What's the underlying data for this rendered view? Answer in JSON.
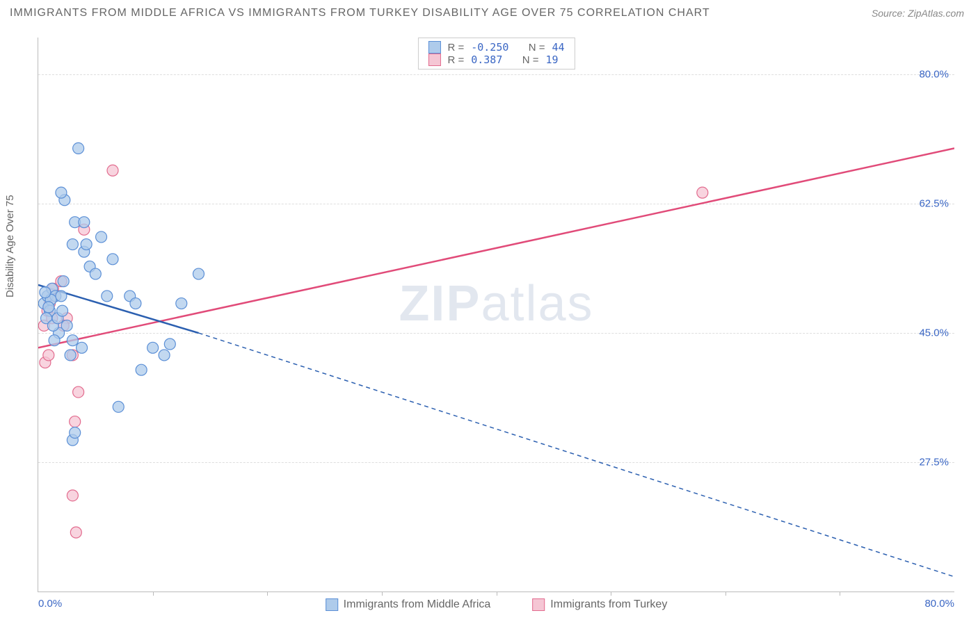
{
  "header": {
    "title": "IMMIGRANTS FROM MIDDLE AFRICA VS IMMIGRANTS FROM TURKEY DISABILITY AGE OVER 75 CORRELATION CHART",
    "source_prefix": "Source: ",
    "source_link": "ZipAtlas.com"
  },
  "watermark": {
    "zip": "ZIP",
    "atlas": "atlas"
  },
  "chart": {
    "type": "scatter-correlation",
    "y_axis_label": "Disability Age Over 75",
    "xlim": [
      0,
      80
    ],
    "ylim": [
      10,
      85
    ],
    "x_ticks_minor": [
      10,
      20,
      30,
      40,
      50,
      60,
      70
    ],
    "x_tick_labels": [
      {
        "pos": 0,
        "label": "0.0%",
        "align": "left"
      },
      {
        "pos": 80,
        "label": "80.0%",
        "align": "right"
      }
    ],
    "y_ticks": [
      {
        "pos": 27.5,
        "label": "27.5%"
      },
      {
        "pos": 45.0,
        "label": "45.0%"
      },
      {
        "pos": 62.5,
        "label": "62.5%"
      },
      {
        "pos": 80.0,
        "label": "80.0%"
      }
    ],
    "grid_color": "#dddddd",
    "background": "#ffffff",
    "series": [
      {
        "id": "middle_africa",
        "label": "Immigrants from Middle Africa",
        "color_fill": "#aecbeb",
        "color_stroke": "#5b8fd6",
        "marker_radius": 8,
        "R": "-0.250",
        "N": "44",
        "regression": {
          "solid": {
            "x1": 0,
            "y1": 51.5,
            "x2": 14,
            "y2": 45
          },
          "dashed": {
            "x1": 14,
            "y1": 45,
            "x2": 80,
            "y2": 12
          },
          "color": "#2b5fb0",
          "width": 2.5,
          "dash": "6,5"
        },
        "points": [
          {
            "x": 0.5,
            "y": 49
          },
          {
            "x": 0.8,
            "y": 50
          },
          {
            "x": 1.0,
            "y": 48
          },
          {
            "x": 1.2,
            "y": 51
          },
          {
            "x": 0.7,
            "y": 47
          },
          {
            "x": 1.5,
            "y": 50
          },
          {
            "x": 1.1,
            "y": 49.5
          },
          {
            "x": 0.9,
            "y": 48.5
          },
          {
            "x": 2.0,
            "y": 50
          },
          {
            "x": 2.2,
            "y": 52
          },
          {
            "x": 1.8,
            "y": 45
          },
          {
            "x": 2.5,
            "y": 46
          },
          {
            "x": 2.3,
            "y": 63
          },
          {
            "x": 2.0,
            "y": 64
          },
          {
            "x": 3.0,
            "y": 57
          },
          {
            "x": 3.2,
            "y": 60
          },
          {
            "x": 3.5,
            "y": 70
          },
          {
            "x": 4.0,
            "y": 56
          },
          {
            "x": 4.2,
            "y": 57
          },
          {
            "x": 4.0,
            "y": 60
          },
          {
            "x": 4.5,
            "y": 54
          },
          {
            "x": 3.8,
            "y": 43
          },
          {
            "x": 3.0,
            "y": 44
          },
          {
            "x": 2.8,
            "y": 42
          },
          {
            "x": 3.0,
            "y": 30.5
          },
          {
            "x": 3.2,
            "y": 31.5
          },
          {
            "x": 5.0,
            "y": 53
          },
          {
            "x": 5.5,
            "y": 58
          },
          {
            "x": 6.0,
            "y": 50
          },
          {
            "x": 6.5,
            "y": 55
          },
          {
            "x": 7.0,
            "y": 35
          },
          {
            "x": 8.0,
            "y": 50
          },
          {
            "x": 8.5,
            "y": 49
          },
          {
            "x": 9.0,
            "y": 40
          },
          {
            "x": 10.0,
            "y": 43
          },
          {
            "x": 11.0,
            "y": 42
          },
          {
            "x": 11.5,
            "y": 43.5
          },
          {
            "x": 12.5,
            "y": 49
          },
          {
            "x": 14.0,
            "y": 53
          },
          {
            "x": 1.3,
            "y": 46
          },
          {
            "x": 0.6,
            "y": 50.5
          },
          {
            "x": 1.7,
            "y": 47
          },
          {
            "x": 2.1,
            "y": 48
          },
          {
            "x": 1.4,
            "y": 44
          }
        ]
      },
      {
        "id": "turkey",
        "label": "Immigrants from Turkey",
        "color_fill": "#f5c6d4",
        "color_stroke": "#e26b8e",
        "marker_radius": 8,
        "R": "0.387",
        "N": "19",
        "regression": {
          "solid": {
            "x1": 0,
            "y1": 43,
            "x2": 80,
            "y2": 70
          },
          "color": "#e14b79",
          "width": 2.5
        },
        "points": [
          {
            "x": 0.5,
            "y": 46
          },
          {
            "x": 0.8,
            "y": 48
          },
          {
            "x": 1.0,
            "y": 49
          },
          {
            "x": 1.2,
            "y": 47
          },
          {
            "x": 0.6,
            "y": 41
          },
          {
            "x": 0.9,
            "y": 42
          },
          {
            "x": 1.5,
            "y": 50
          },
          {
            "x": 1.3,
            "y": 51
          },
          {
            "x": 2.0,
            "y": 52
          },
          {
            "x": 2.5,
            "y": 47
          },
          {
            "x": 2.2,
            "y": 46
          },
          {
            "x": 3.0,
            "y": 42
          },
          {
            "x": 3.5,
            "y": 37
          },
          {
            "x": 3.2,
            "y": 33
          },
          {
            "x": 4.0,
            "y": 59
          },
          {
            "x": 3.0,
            "y": 23
          },
          {
            "x": 3.3,
            "y": 18
          },
          {
            "x": 6.5,
            "y": 67
          },
          {
            "x": 58,
            "y": 64
          }
        ]
      }
    ],
    "legend_top": {
      "r_label": "R =",
      "n_label": "N ="
    }
  }
}
